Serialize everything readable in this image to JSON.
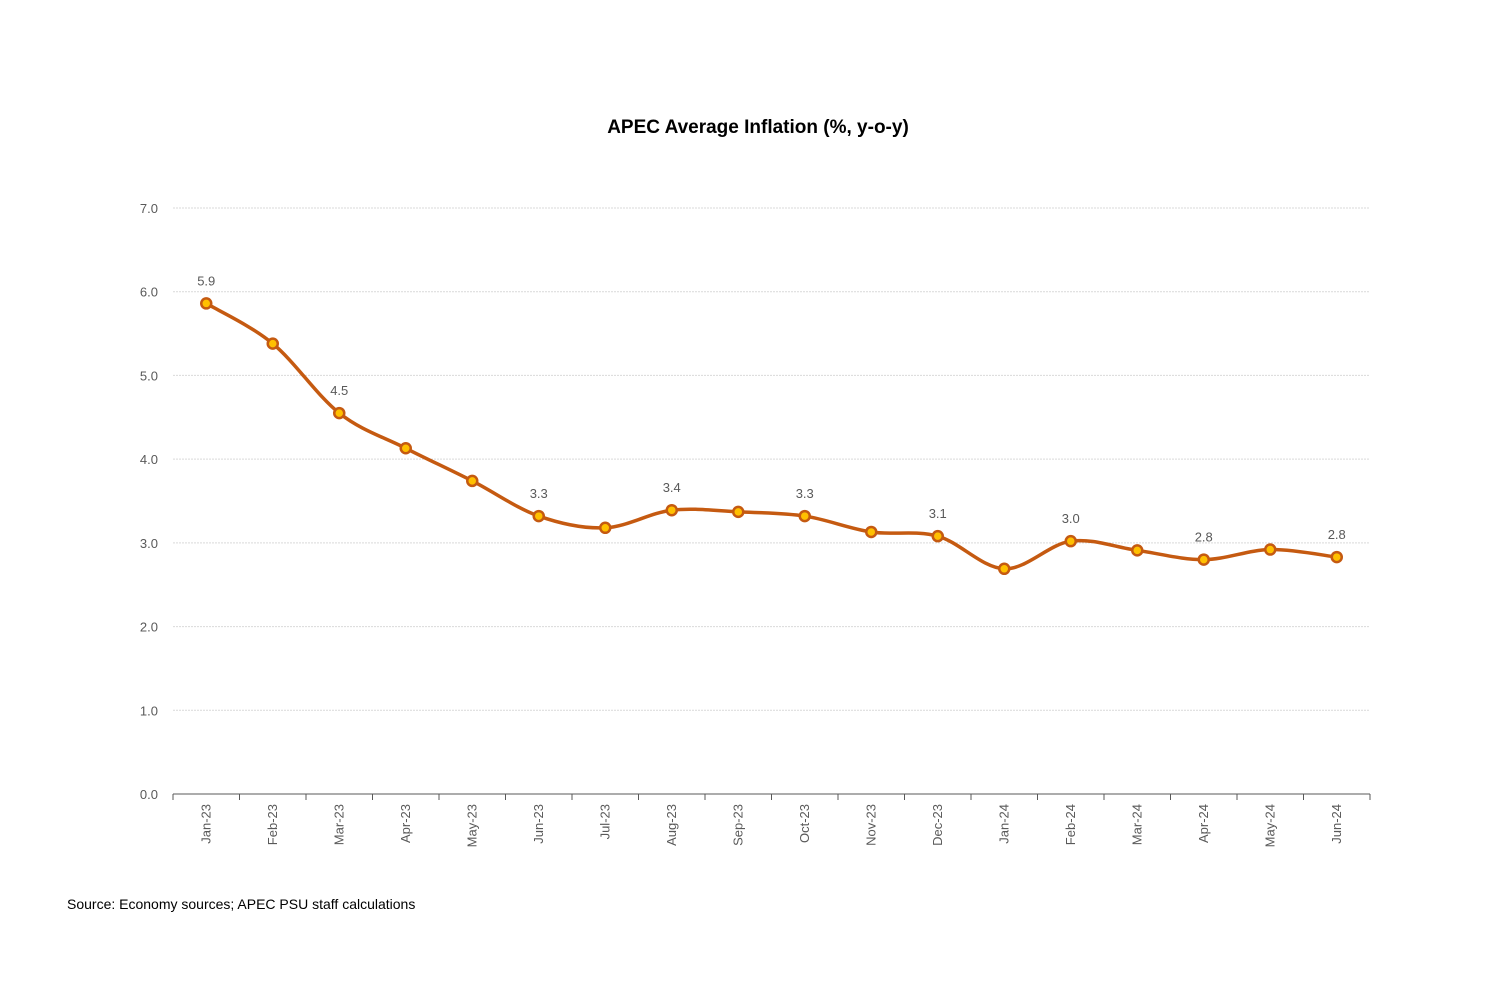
{
  "chart_data": {
    "type": "line",
    "title": "APEC Average Inflation (%, y-o-y)",
    "xlabel": "",
    "ylabel": "",
    "categories": [
      "Jan-23",
      "Feb-23",
      "Mar-23",
      "Apr-23",
      "May-23",
      "Jun-23",
      "Jul-23",
      "Aug-23",
      "Sep-23",
      "Oct-23",
      "Nov-23",
      "Dec-23",
      "Jan-24",
      "Feb-24",
      "Mar-24",
      "Apr-24",
      "May-24",
      "Jun-24"
    ],
    "series": [
      {
        "values": [
          5.86,
          5.38,
          4.55,
          4.13,
          3.74,
          3.32,
          3.18,
          3.39,
          3.37,
          3.32,
          3.13,
          3.08,
          2.69,
          3.02,
          2.91,
          2.8,
          2.92,
          2.83
        ],
        "color": "#C55A11",
        "marker_fill": "#FFC000"
      }
    ],
    "data_labels": [
      {
        "index": 0,
        "text": "5.9"
      },
      {
        "index": 2,
        "text": "4.5"
      },
      {
        "index": 5,
        "text": "3.3"
      },
      {
        "index": 7,
        "text": "3.4"
      },
      {
        "index": 9,
        "text": "3.3"
      },
      {
        "index": 11,
        "text": "3.1"
      },
      {
        "index": 13,
        "text": "3.0"
      },
      {
        "index": 15,
        "text": "2.8"
      },
      {
        "index": 17,
        "text": "2.8"
      }
    ],
    "ylim": [
      0,
      7
    ],
    "yticks": [
      "0.0",
      "1.0",
      "2.0",
      "3.0",
      "4.0",
      "5.0",
      "6.0",
      "7.0"
    ],
    "grid": true,
    "legend": "none"
  },
  "source_note": "Source: Economy sources; APEC PSU staff calculations"
}
